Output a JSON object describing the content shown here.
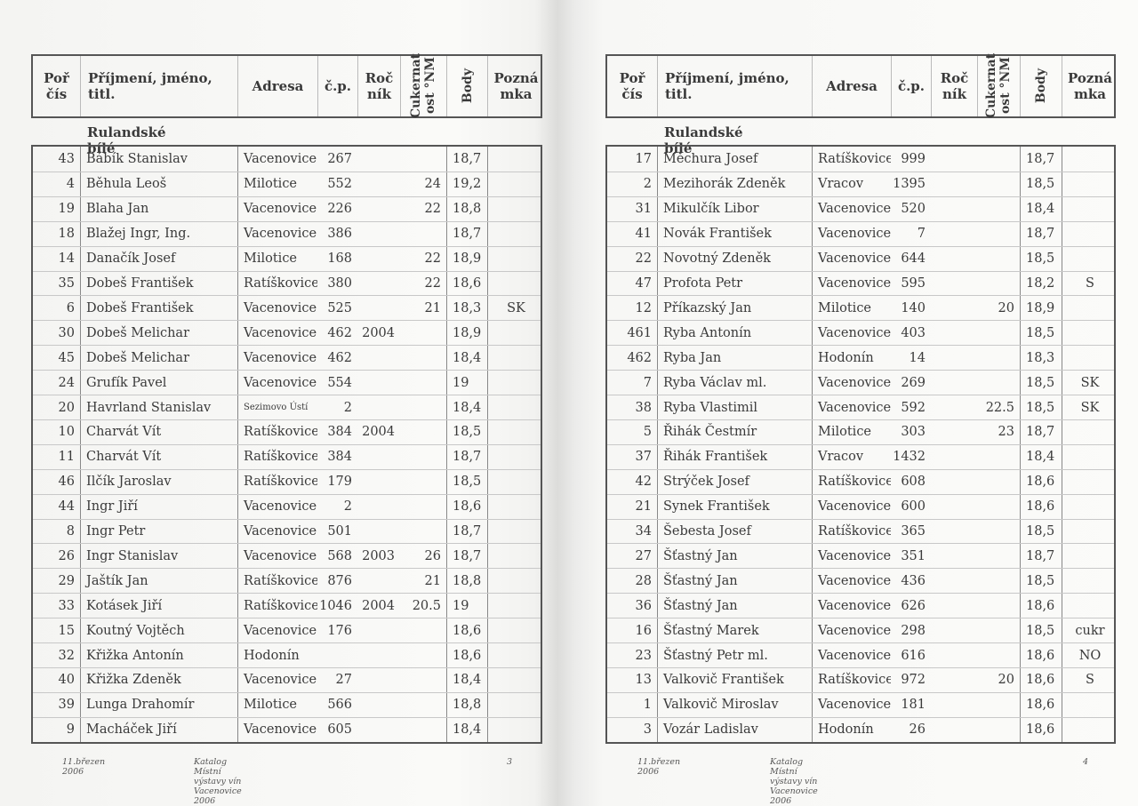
{
  "headers": {
    "por": "Poř čís",
    "name": "Příjmení, jméno, titl.",
    "adresa": "Adresa",
    "cp": "č.p.",
    "rocnik": "Roč ník",
    "cukernatost": "Cukernat ost °NM",
    "body": "Body",
    "poznamka": "Pozná mka"
  },
  "pages": [
    {
      "section": "Rulandské bílé",
      "footer": {
        "date": "11.březen 2006",
        "title": "Katalog Místní výstavy vín Vacenovice 2006",
        "page": "3"
      },
      "rows": [
        [
          "43",
          "Bábík Stanislav",
          "Vacenovice",
          "267",
          "",
          "",
          "18,7",
          ""
        ],
        [
          "4",
          "Běhula Leoš",
          "Milotice",
          "552",
          "",
          "24",
          "19,2",
          ""
        ],
        [
          "19",
          "Blaha Jan",
          "Vacenovice",
          "226",
          "",
          "22",
          "18,8",
          ""
        ],
        [
          "18",
          "Blažej Ingr, Ing.",
          "Vacenovice",
          "386",
          "",
          "",
          "18,7",
          ""
        ],
        [
          "14",
          "Danačík Josef",
          "Milotice",
          "168",
          "",
          "22",
          "18,9",
          ""
        ],
        [
          "35",
          "Dobeš František",
          "Ratíškovice",
          "380",
          "",
          "22",
          "18,6",
          ""
        ],
        [
          "6",
          "Dobeš František",
          "Vacenovice",
          "525",
          "",
          "21",
          "18,3",
          "SK"
        ],
        [
          "30",
          "Dobeš Melichar",
          "Vacenovice",
          "462",
          "2004",
          "",
          "18,9",
          ""
        ],
        [
          "45",
          "Dobeš Melichar",
          "Vacenovice",
          "462",
          "",
          "",
          "18,4",
          ""
        ],
        [
          "24",
          "Grufík Pavel",
          "Vacenovice",
          "554",
          "",
          "",
          "19",
          ""
        ],
        [
          "20",
          "Havrland Stanislav",
          "Sezimovo Ústí",
          "2",
          "",
          "",
          "18,4",
          ""
        ],
        [
          "10",
          "Charvát Vít",
          "Ratíškovice",
          "384",
          "2004",
          "",
          "18,5",
          ""
        ],
        [
          "11",
          "Charvát Vít",
          "Ratíškovice",
          "384",
          "",
          "",
          "18,7",
          ""
        ],
        [
          "46",
          "Ilčík Jaroslav",
          "Ratíškovice",
          "179",
          "",
          "",
          "18,5",
          ""
        ],
        [
          "44",
          "Ingr Jiří",
          "Vacenovice",
          "2",
          "",
          "",
          "18,6",
          ""
        ],
        [
          "8",
          "Ingr Petr",
          "Vacenovice",
          "501",
          "",
          "",
          "18,7",
          ""
        ],
        [
          "26",
          "Ingr Stanislav",
          "Vacenovice",
          "568",
          "2003",
          "26",
          "18,7",
          ""
        ],
        [
          "29",
          "Jaštík Jan",
          "Ratíškovice",
          "876",
          "",
          "21",
          "18,8",
          ""
        ],
        [
          "33",
          "Kotásek Jiří",
          "Ratíškovice",
          "1046",
          "2004",
          "20.5",
          "19",
          ""
        ],
        [
          "15",
          "Koutný Vojtěch",
          "Vacenovice",
          "176",
          "",
          "",
          "18,6",
          ""
        ],
        [
          "32",
          "Křižka Antonín",
          "Hodonín",
          "",
          "",
          "",
          "18,6",
          ""
        ],
        [
          "40",
          "Křižka Zdeněk",
          "Vacenovice",
          "27",
          "",
          "",
          "18,4",
          ""
        ],
        [
          "39",
          "Lunga Drahomír",
          "Milotice",
          "566",
          "",
          "",
          "18,8",
          ""
        ],
        [
          "9",
          "Macháček Jiří",
          "Vacenovice",
          "605",
          "",
          "",
          "18,4",
          ""
        ]
      ]
    },
    {
      "section": "Rulandské bílé",
      "footer": {
        "date": "11.březen 2006",
        "title": "Katalog Místní výstavy vín Vacenovice 2006",
        "page": "4"
      },
      "rows": [
        [
          "17",
          "Měchura Josef",
          "Ratíškovice",
          "999",
          "",
          "",
          "18,7",
          ""
        ],
        [
          "2",
          "Mezihorák Zdeněk",
          "Vracov",
          "1395",
          "",
          "",
          "18,5",
          ""
        ],
        [
          "31",
          "Mikulčík Libor",
          "Vacenovice",
          "520",
          "",
          "",
          "18,4",
          ""
        ],
        [
          "41",
          "Novák František",
          "Vacenovice",
          "7",
          "",
          "",
          "18,7",
          ""
        ],
        [
          "22",
          "Novotný Zdeněk",
          "Vacenovice",
          "644",
          "",
          "",
          "18,5",
          ""
        ],
        [
          "47",
          "Profota Petr",
          "Vacenovice",
          "595",
          "",
          "",
          "18,2",
          "S"
        ],
        [
          "12",
          "Příkazský Jan",
          "Milotice",
          "140",
          "",
          "20",
          "18,9",
          ""
        ],
        [
          "461",
          "Ryba Antonín",
          "Vacenovice",
          "403",
          "",
          "",
          "18,5",
          ""
        ],
        [
          "462",
          "Ryba Jan",
          "Hodonín",
          "14",
          "",
          "",
          "18,3",
          ""
        ],
        [
          "7",
          "Ryba Václav ml.",
          "Vacenovice",
          "269",
          "",
          "",
          "18,5",
          "SK"
        ],
        [
          "38",
          "Ryba Vlastimil",
          "Vacenovice",
          "592",
          "",
          "22.5",
          "18,5",
          "SK"
        ],
        [
          "5",
          "Řihák Čestmír",
          "Milotice",
          "303",
          "",
          "23",
          "18,7",
          ""
        ],
        [
          "37",
          "Řihák František",
          "Vracov",
          "1432",
          "",
          "",
          "18,4",
          ""
        ],
        [
          "42",
          "Strýček Josef",
          "Ratíškovice",
          "608",
          "",
          "",
          "18,6",
          ""
        ],
        [
          "21",
          "Synek František",
          "Vacenovice",
          "600",
          "",
          "",
          "18,6",
          ""
        ],
        [
          "34",
          "Šebesta Josef",
          "Ratíškovice",
          "365",
          "",
          "",
          "18,5",
          ""
        ],
        [
          "27",
          "Šťastný Jan",
          "Vacenovice",
          "351",
          "",
          "",
          "18,7",
          ""
        ],
        [
          "28",
          "Šťastný Jan",
          "Vacenovice",
          "436",
          "",
          "",
          "18,5",
          ""
        ],
        [
          "36",
          "Šťastný Jan",
          "Vacenovice",
          "626",
          "",
          "",
          "18,6",
          ""
        ],
        [
          "16",
          "Šťastný Marek",
          "Vacenovice",
          "298",
          "",
          "",
          "18,5",
          "cukr"
        ],
        [
          "23",
          "Šťastný Petr ml.",
          "Vacenovice",
          "616",
          "",
          "",
          "18,6",
          "NO"
        ],
        [
          "13",
          "Valkovič František",
          "Ratíškovice",
          "972",
          "",
          "20",
          "18,6",
          "S"
        ],
        [
          "1",
          "Valkovič Miroslav",
          "Vacenovice",
          "181",
          "",
          "",
          "18,6",
          ""
        ],
        [
          "3",
          "Vozár Ladislav",
          "Hodonín",
          "26",
          "",
          "",
          "18,6",
          ""
        ]
      ]
    }
  ]
}
